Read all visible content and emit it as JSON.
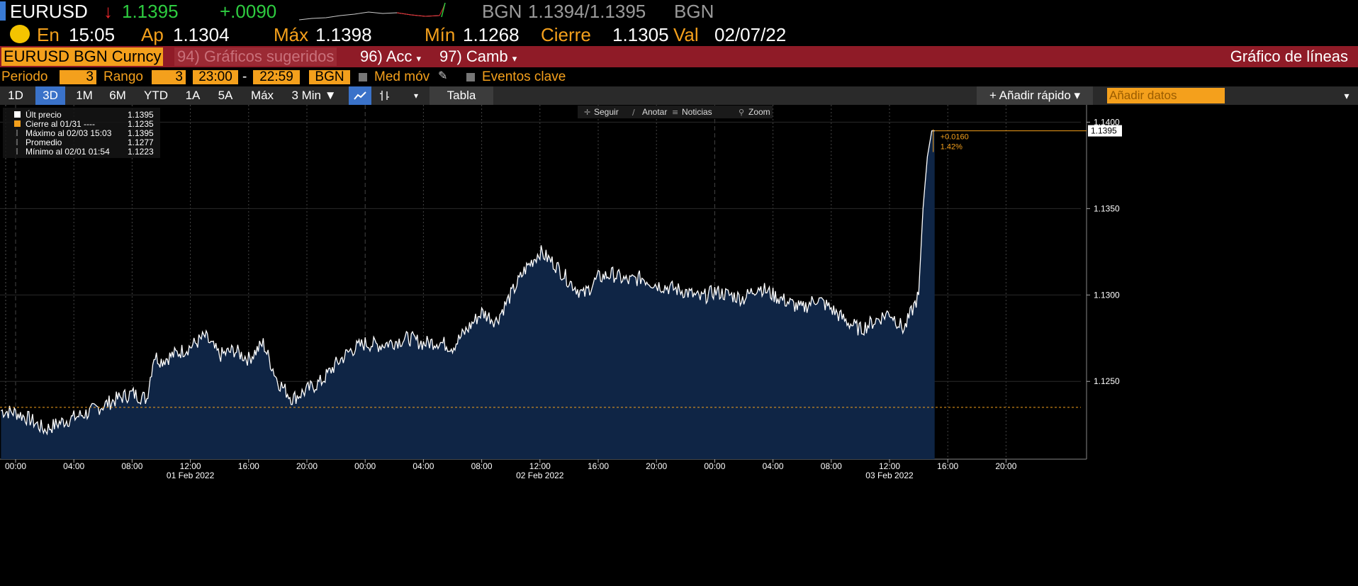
{
  "header": {
    "ticker": "EURUSD",
    "arrow": "↓",
    "price": "1.1395",
    "change": "+.0090",
    "bid_label": "BGN",
    "bid_ask": "1.1394/1.1395",
    "ask_label": "BGN"
  },
  "sub": {
    "en_label": "En",
    "time": "15:05",
    "ap_label": "Ap",
    "ap_value": "1.1304",
    "max_label": "Máx",
    "max_value": "1.1398",
    "min_label": "Mín",
    "min_value": "1.1268",
    "cierre_label": "Cierre",
    "cierre_value": "1.1305",
    "val_label": "Val",
    "val_date": "02/07/22"
  },
  "toolbar": {
    "security": "EURUSD BGN Curncy",
    "suggested": "94) Gráficos sugeridos",
    "acc": "96) Acc",
    "camb": "97) Camb",
    "chart_type": "Gráfico de líneas"
  },
  "settings": {
    "periodo_label": "Periodo",
    "periodo_value": "3",
    "rango_label": "Rango",
    "rango_value": "3",
    "time_from": "23:00",
    "dash": "-",
    "time_to": "22:59",
    "source": "BGN",
    "med_mov": "Med móv",
    "eventos": "Eventos clave"
  },
  "ranges": [
    "1D",
    "3D",
    "1M",
    "6M",
    "YTD",
    "1A",
    "5A",
    "Máx"
  ],
  "interval": "3 Min ▼",
  "tabla": "Tabla",
  "quick_add": "+ Añadir rápido ▾",
  "add_data_placeholder": "Añadir datos",
  "chart_tools": [
    "Seguir",
    "Anotar",
    "Noticias",
    "Zoom"
  ],
  "legend": [
    {
      "label": "Últ precio",
      "value": "1.1395"
    },
    {
      "label": "Cierre al 01/31  ----",
      "value": "1.1235"
    },
    {
      "label": "Máximo al 02/03 15:03",
      "value": "1.1395"
    },
    {
      "label": "Promedio",
      "value": "1.1277"
    },
    {
      "label": "Mínimo al 02/01 01:54",
      "value": "1.1223"
    }
  ],
  "annotation": {
    "change": "+0.0160",
    "pct": "1.42%"
  },
  "last_price_tag": "1.1395",
  "colors": {
    "up": "#2ecc40",
    "down": "#e8262b",
    "accent": "#f4a01c",
    "toolbar": "#8f1b27",
    "area": "#0f2545",
    "line": "#ffffff"
  },
  "chart_data": {
    "type": "area",
    "ylim": [
      1.1205,
      1.141
    ],
    "y_ticks": [
      "1.1400",
      "1.1350",
      "1.1300",
      "1.1250"
    ],
    "reference_line": 1.1235,
    "x_ticks": [
      "00:00",
      "04:00",
      "08:00",
      "12:00",
      "16:00",
      "20:00",
      "00:00",
      "04:00",
      "08:00",
      "12:00",
      "16:00",
      "20:00",
      "00:00",
      "04:00",
      "08:00",
      "12:00",
      "16:00",
      "20:00"
    ],
    "date_labels": [
      "01 Feb 2022",
      "02 Feb 2022",
      "03 Feb 2022"
    ],
    "x_hours": [
      -1,
      0,
      1,
      2,
      3,
      4,
      5,
      6,
      7,
      8,
      9,
      9.5,
      10,
      11,
      12,
      13,
      14,
      15,
      16,
      17,
      18,
      19,
      20,
      21,
      22,
      23,
      24,
      25,
      26,
      27,
      28,
      29,
      30,
      31,
      32,
      33,
      34,
      35,
      36,
      37,
      38,
      39,
      40,
      41,
      42,
      43,
      44,
      45,
      46,
      47,
      48,
      49,
      50,
      51,
      52,
      53,
      54,
      55,
      56,
      57,
      58,
      59,
      60,
      61,
      62,
      62.3,
      62.6,
      62.9,
      63.1
    ],
    "values": [
      1.1233,
      1.1232,
      1.1228,
      1.1222,
      1.1226,
      1.1229,
      1.1232,
      1.1236,
      1.124,
      1.1243,
      1.124,
      1.1265,
      1.1262,
      1.1266,
      1.127,
      1.1276,
      1.1265,
      1.1268,
      1.1263,
      1.1272,
      1.125,
      1.124,
      1.1245,
      1.125,
      1.126,
      1.1268,
      1.1272,
      1.1271,
      1.1273,
      1.1275,
      1.1272,
      1.1273,
      1.127,
      1.128,
      1.129,
      1.1285,
      1.13,
      1.1315,
      1.1325,
      1.1318,
      1.1308,
      1.13,
      1.131,
      1.1312,
      1.1308,
      1.131,
      1.1306,
      1.1304,
      1.1302,
      1.1298,
      1.1302,
      1.13,
      1.1298,
      1.1305,
      1.13,
      1.1296,
      1.1292,
      1.1298,
      1.1292,
      1.1285,
      1.128,
      1.1285,
      1.129,
      1.128,
      1.13,
      1.135,
      1.138,
      1.1395,
      1.1395
    ]
  }
}
